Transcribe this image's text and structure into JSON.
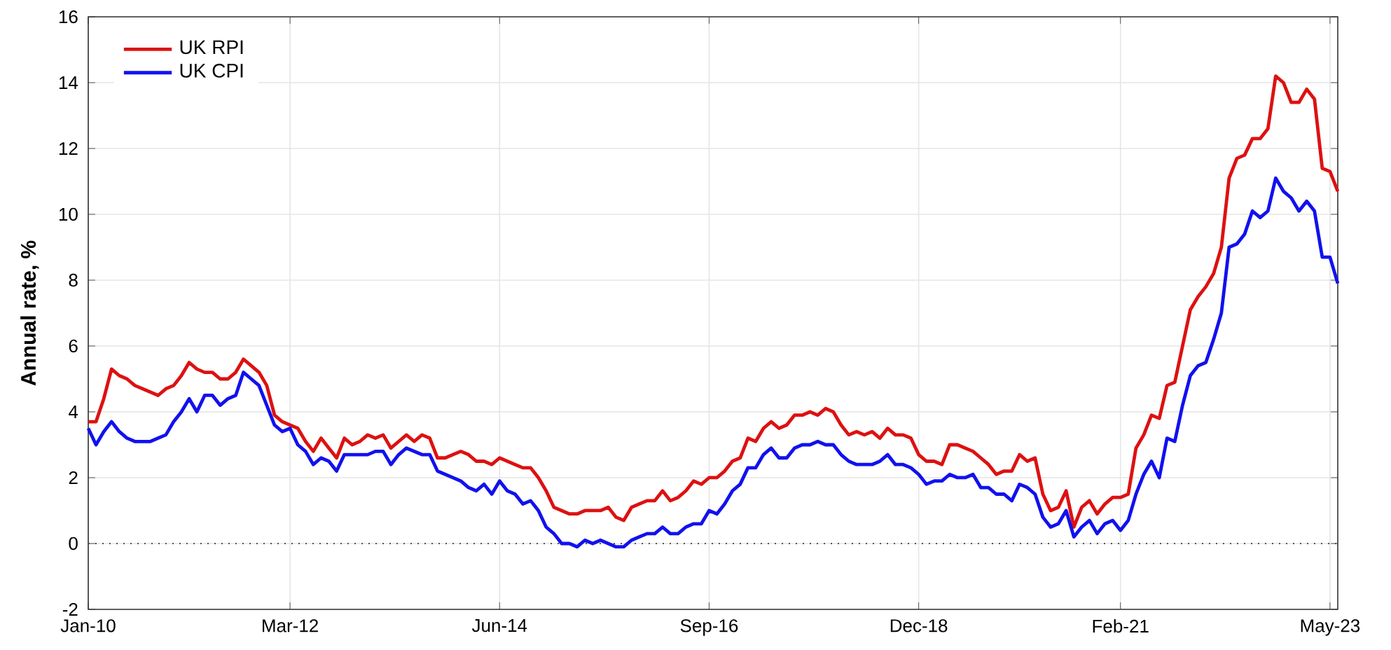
{
  "chart_data": {
    "type": "line",
    "ylabel": "Annual rate, %",
    "x": [
      "2010-01",
      "2010-02",
      "2010-03",
      "2010-04",
      "2010-05",
      "2010-06",
      "2010-07",
      "2010-08",
      "2010-09",
      "2010-10",
      "2010-11",
      "2010-12",
      "2011-01",
      "2011-02",
      "2011-03",
      "2011-04",
      "2011-05",
      "2011-06",
      "2011-07",
      "2011-08",
      "2011-09",
      "2011-10",
      "2011-11",
      "2011-12",
      "2012-01",
      "2012-02",
      "2012-03",
      "2012-04",
      "2012-05",
      "2012-06",
      "2012-07",
      "2012-08",
      "2012-09",
      "2012-10",
      "2012-11",
      "2012-12",
      "2013-01",
      "2013-02",
      "2013-03",
      "2013-04",
      "2013-05",
      "2013-06",
      "2013-07",
      "2013-08",
      "2013-09",
      "2013-10",
      "2013-11",
      "2013-12",
      "2014-01",
      "2014-02",
      "2014-03",
      "2014-04",
      "2014-05",
      "2014-06",
      "2014-07",
      "2014-08",
      "2014-09",
      "2014-10",
      "2014-11",
      "2014-12",
      "2015-01",
      "2015-02",
      "2015-03",
      "2015-04",
      "2015-05",
      "2015-06",
      "2015-07",
      "2015-08",
      "2015-09",
      "2015-10",
      "2015-11",
      "2015-12",
      "2016-01",
      "2016-02",
      "2016-03",
      "2016-04",
      "2016-05",
      "2016-06",
      "2016-07",
      "2016-08",
      "2016-09",
      "2016-10",
      "2016-11",
      "2016-12",
      "2017-01",
      "2017-02",
      "2017-03",
      "2017-04",
      "2017-05",
      "2017-06",
      "2017-07",
      "2017-08",
      "2017-09",
      "2017-10",
      "2017-11",
      "2017-12",
      "2018-01",
      "2018-02",
      "2018-03",
      "2018-04",
      "2018-05",
      "2018-06",
      "2018-07",
      "2018-08",
      "2018-09",
      "2018-10",
      "2018-11",
      "2018-12",
      "2019-01",
      "2019-02",
      "2019-03",
      "2019-04",
      "2019-05",
      "2019-06",
      "2019-07",
      "2019-08",
      "2019-09",
      "2019-10",
      "2019-11",
      "2019-12",
      "2020-01",
      "2020-02",
      "2020-03",
      "2020-04",
      "2020-05",
      "2020-06",
      "2020-07",
      "2020-08",
      "2020-09",
      "2020-10",
      "2020-11",
      "2020-12",
      "2021-01",
      "2021-02",
      "2021-03",
      "2021-04",
      "2021-05",
      "2021-06",
      "2021-07",
      "2021-08",
      "2021-09",
      "2021-10",
      "2021-11",
      "2021-12",
      "2022-01",
      "2022-02",
      "2022-03",
      "2022-04",
      "2022-05",
      "2022-06",
      "2022-07",
      "2022-08",
      "2022-09",
      "2022-10",
      "2022-11",
      "2022-12",
      "2023-01",
      "2023-02",
      "2023-03",
      "2023-04",
      "2023-05",
      "2023-06"
    ],
    "series": [
      {
        "name": "UK RPI",
        "color": "#dd1111",
        "values": [
          3.7,
          3.7,
          4.4,
          5.3,
          5.1,
          5.0,
          4.8,
          4.7,
          4.6,
          4.5,
          4.7,
          4.8,
          5.1,
          5.5,
          5.3,
          5.2,
          5.2,
          5.0,
          5.0,
          5.2,
          5.6,
          5.4,
          5.2,
          4.8,
          3.9,
          3.7,
          3.6,
          3.5,
          3.1,
          2.8,
          3.2,
          2.9,
          2.6,
          3.2,
          3.0,
          3.1,
          3.3,
          3.2,
          3.3,
          2.9,
          3.1,
          3.3,
          3.1,
          3.3,
          3.2,
          2.6,
          2.6,
          2.7,
          2.8,
          2.7,
          2.5,
          2.5,
          2.4,
          2.6,
          2.5,
          2.4,
          2.3,
          2.3,
          2.0,
          1.6,
          1.1,
          1.0,
          0.9,
          0.9,
          1.0,
          1.0,
          1.0,
          1.1,
          0.8,
          0.7,
          1.1,
          1.2,
          1.3,
          1.3,
          1.6,
          1.3,
          1.4,
          1.6,
          1.9,
          1.8,
          2.0,
          2.0,
          2.2,
          2.5,
          2.6,
          3.2,
          3.1,
          3.5,
          3.7,
          3.5,
          3.6,
          3.9,
          3.9,
          4.0,
          3.9,
          4.1,
          4.0,
          3.6,
          3.3,
          3.4,
          3.3,
          3.4,
          3.2,
          3.5,
          3.3,
          3.3,
          3.2,
          2.7,
          2.5,
          2.5,
          2.4,
          3.0,
          3.0,
          2.9,
          2.8,
          2.6,
          2.4,
          2.1,
          2.2,
          2.2,
          2.7,
          2.5,
          2.6,
          1.5,
          1.0,
          1.1,
          1.6,
          0.5,
          1.1,
          1.3,
          0.9,
          1.2,
          1.4,
          1.4,
          1.5,
          2.9,
          3.3,
          3.9,
          3.8,
          4.8,
          4.9,
          6.0,
          7.1,
          7.5,
          7.8,
          8.2,
          9.0,
          11.1,
          11.7,
          11.8,
          12.3,
          12.3,
          12.6,
          14.2,
          14.0,
          13.4,
          13.4,
          13.8,
          13.5,
          11.4,
          11.3,
          10.7
        ]
      },
      {
        "name": "UK CPI",
        "color": "#1111ee",
        "values": [
          3.5,
          3.0,
          3.4,
          3.7,
          3.4,
          3.2,
          3.1,
          3.1,
          3.1,
          3.2,
          3.3,
          3.7,
          4.0,
          4.4,
          4.0,
          4.5,
          4.5,
          4.2,
          4.4,
          4.5,
          5.2,
          5.0,
          4.8,
          4.2,
          3.6,
          3.4,
          3.5,
          3.0,
          2.8,
          2.4,
          2.6,
          2.5,
          2.2,
          2.7,
          2.7,
          2.7,
          2.7,
          2.8,
          2.8,
          2.4,
          2.7,
          2.9,
          2.8,
          2.7,
          2.7,
          2.2,
          2.1,
          2.0,
          1.9,
          1.7,
          1.6,
          1.8,
          1.5,
          1.9,
          1.6,
          1.5,
          1.2,
          1.3,
          1.0,
          0.5,
          0.3,
          0.0,
          0.0,
          -0.1,
          0.1,
          0.0,
          0.1,
          0.0,
          -0.1,
          -0.1,
          0.1,
          0.2,
          0.3,
          0.3,
          0.5,
          0.3,
          0.3,
          0.5,
          0.6,
          0.6,
          1.0,
          0.9,
          1.2,
          1.6,
          1.8,
          2.3,
          2.3,
          2.7,
          2.9,
          2.6,
          2.6,
          2.9,
          3.0,
          3.0,
          3.1,
          3.0,
          3.0,
          2.7,
          2.5,
          2.4,
          2.4,
          2.4,
          2.5,
          2.7,
          2.4,
          2.4,
          2.3,
          2.1,
          1.8,
          1.9,
          1.9,
          2.1,
          2.0,
          2.0,
          2.1,
          1.7,
          1.7,
          1.5,
          1.5,
          1.3,
          1.8,
          1.7,
          1.5,
          0.8,
          0.5,
          0.6,
          1.0,
          0.2,
          0.5,
          0.7,
          0.3,
          0.6,
          0.7,
          0.4,
          0.7,
          1.5,
          2.1,
          2.5,
          2.0,
          3.2,
          3.1,
          4.2,
          5.1,
          5.4,
          5.5,
          6.2,
          7.0,
          9.0,
          9.1,
          9.4,
          10.1,
          9.9,
          10.1,
          11.1,
          10.7,
          10.5,
          10.1,
          10.4,
          10.1,
          8.7,
          8.7,
          7.9
        ]
      }
    ],
    "xlim": [
      "2010-01",
      "2023-06"
    ],
    "xticks": [
      {
        "value": "2010-01",
        "label": "Jan-10"
      },
      {
        "value": "2012-03",
        "label": "Mar-12"
      },
      {
        "value": "2014-06",
        "label": "Jun-14"
      },
      {
        "value": "2016-09",
        "label": "Sep-16"
      },
      {
        "value": "2018-12",
        "label": "Dec-18"
      },
      {
        "value": "2021-02",
        "label": "Feb-21"
      },
      {
        "value": "2023-05",
        "label": "May-23"
      }
    ],
    "ylim": [
      -2,
      16
    ],
    "yticks": [
      -2,
      0,
      2,
      4,
      6,
      8,
      10,
      12,
      14,
      16
    ],
    "ref_lines": [
      {
        "axis": "y",
        "value": 0,
        "line_style": "dotted",
        "color": "#555555"
      }
    ],
    "grid": true,
    "legend": "top left",
    "marker": "none",
    "line_style": "solid"
  }
}
